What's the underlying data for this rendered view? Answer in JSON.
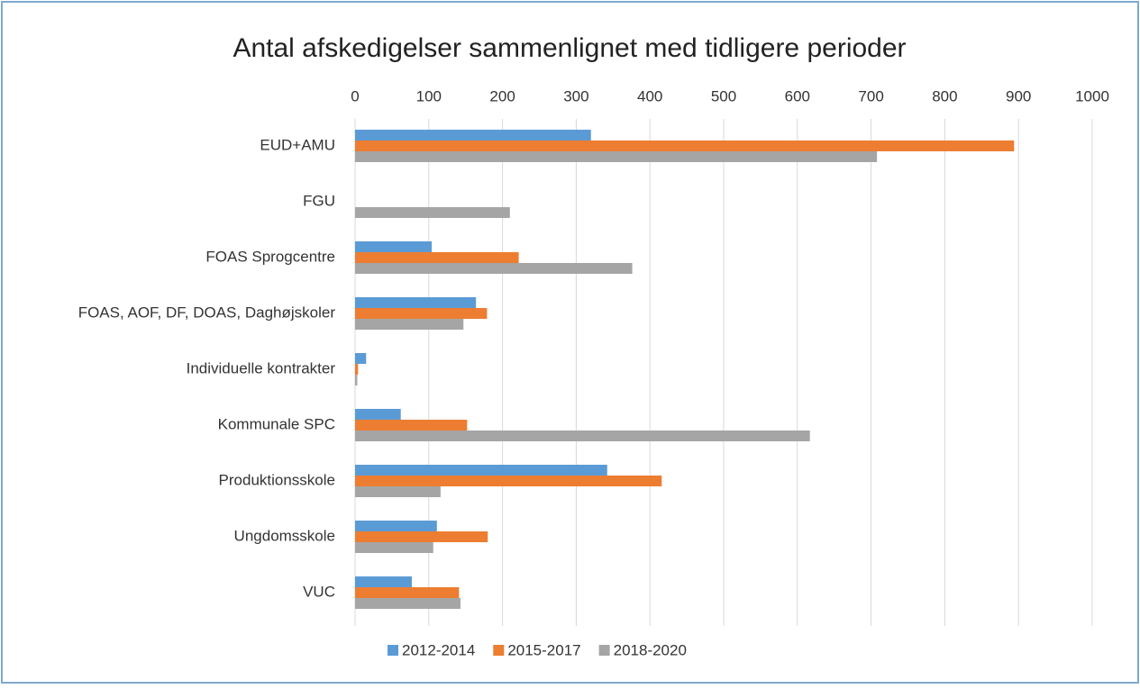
{
  "chart_data": {
    "type": "hbar",
    "title": "Antal afskedigelser sammenlignet med tidligere perioder",
    "categories": [
      "EUD+AMU",
      "FGU",
      "FOAS Sprogcentre",
      "FOAS, AOF, DF, DOAS, Daghøjskoler",
      "Individuelle kontrakter",
      "Kommunale SPC",
      "Produktionsskole",
      "Ungdomsskole",
      "VUC"
    ],
    "series": [
      {
        "name": "2012-2014",
        "color": "#5b9bd5",
        "values": [
          320,
          0,
          104,
          164,
          15,
          62,
          342,
          111,
          77
        ]
      },
      {
        "name": "2015-2017",
        "color": "#ed7d31",
        "values": [
          894,
          0,
          222,
          179,
          4,
          152,
          416,
          180,
          141
        ]
      },
      {
        "name": "2018-2020",
        "color": "#a5a5a5",
        "values": [
          708,
          210,
          376,
          147,
          3,
          617,
          116,
          106,
          143
        ]
      }
    ],
    "xlim": [
      0,
      1000
    ],
    "xticks": [
      0,
      100,
      200,
      300,
      400,
      500,
      600,
      700,
      800,
      900,
      1000
    ],
    "grid": true,
    "legend": "bottom"
  }
}
